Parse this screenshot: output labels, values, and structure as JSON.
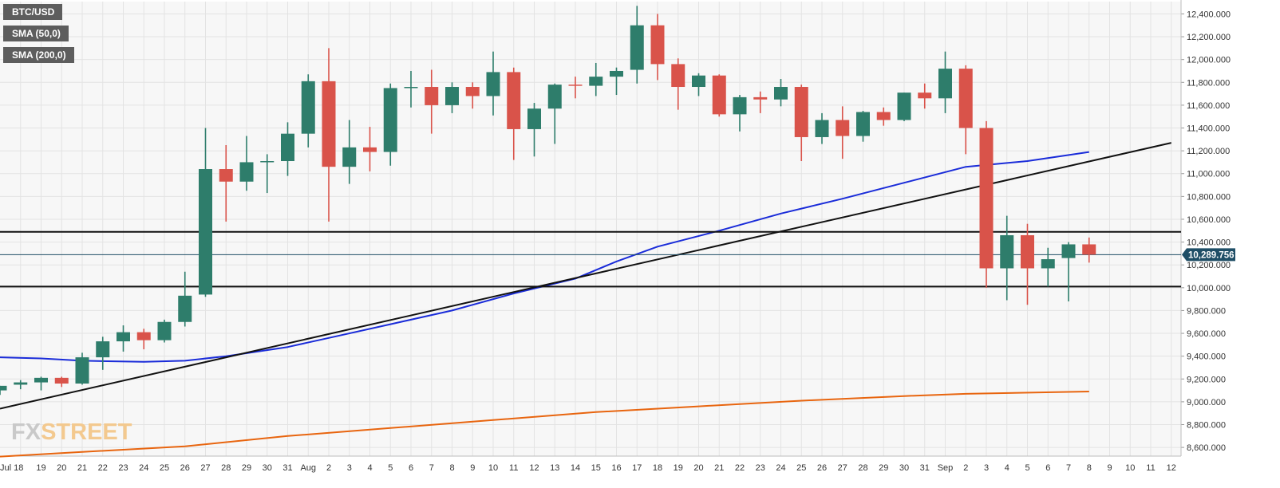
{
  "legend": [
    {
      "label": "BTC/USD",
      "color": "#5d5d5d"
    },
    {
      "label": "SMA (50,0)",
      "color": "#1a2cd9"
    },
    {
      "label": "SMA (200,0)",
      "color": "#e8650f"
    }
  ],
  "watermark": {
    "part1": "FX",
    "part2": "STREET"
  },
  "colors": {
    "bullish": "#2e7d6b",
    "bearish": "#d9534a",
    "sma50": "#1a2cd9",
    "sma200": "#e8650f",
    "trendline": "#111111",
    "level_line": "#111111",
    "current_price": "#1f4e66",
    "plot_background": "#f7f7f7",
    "grid": "#e3e3e3"
  },
  "chart_data": {
    "type": "candlestick",
    "symbol": "BTC/USD",
    "current_price": 10289.756,
    "current_price_label": "10,289.756",
    "ylim": [
      8500,
      12500
    ],
    "y_ticks": [
      8600,
      8800,
      9000,
      9200,
      9400,
      9600,
      9800,
      10000,
      10200,
      10400,
      10600,
      10800,
      11000,
      11200,
      11400,
      11600,
      11800,
      12000,
      12200,
      12400
    ],
    "y_tick_labels": [
      "8,600.000",
      "8,800.000",
      "9,000.000",
      "9,200.000",
      "9,400.000",
      "9,600.000",
      "9,800.000",
      "10,000.000",
      "10,200.000",
      "10,400.000",
      "10,600.000",
      "10,800.000",
      "11,000.000",
      "11,200.000",
      "11,400.000",
      "11,600.000",
      "11,800.000",
      "12,000.000",
      "12,200.000",
      "12,400.000"
    ],
    "x_labels": [
      "Jul 18",
      "19",
      "20",
      "21",
      "22",
      "23",
      "24",
      "25",
      "26",
      "27",
      "28",
      "29",
      "30",
      "31",
      "Aug",
      "2",
      "3",
      "4",
      "5",
      "6",
      "7",
      "8",
      "9",
      "10",
      "11",
      "12",
      "13",
      "14",
      "15",
      "16",
      "17",
      "18",
      "19",
      "20",
      "21",
      "22",
      "23",
      "24",
      "25",
      "26",
      "27",
      "28",
      "29",
      "30",
      "31",
      "Sep",
      "2",
      "3",
      "4",
      "5",
      "6",
      "7",
      "8",
      "9",
      "10",
      "11",
      "12"
    ],
    "candles": [
      {
        "date": "Jul 17",
        "open": 9100,
        "high": 9140,
        "low": 9060,
        "close": 9140
      },
      {
        "date": "Jul 18",
        "open": 9150,
        "high": 9190,
        "low": 9110,
        "close": 9170
      },
      {
        "date": "Jul 19",
        "open": 9170,
        "high": 9220,
        "low": 9100,
        "close": 9210
      },
      {
        "date": "Jul 20",
        "open": 9210,
        "high": 9220,
        "low": 9130,
        "close": 9160
      },
      {
        "date": "Jul 21",
        "open": 9160,
        "high": 9430,
        "low": 9150,
        "close": 9390
      },
      {
        "date": "Jul 22",
        "open": 9390,
        "high": 9570,
        "low": 9280,
        "close": 9530
      },
      {
        "date": "Jul 23",
        "open": 9530,
        "high": 9670,
        "low": 9440,
        "close": 9610
      },
      {
        "date": "Jul 24",
        "open": 9610,
        "high": 9640,
        "low": 9460,
        "close": 9540
      },
      {
        "date": "Jul 25",
        "open": 9540,
        "high": 9720,
        "low": 9520,
        "close": 9700
      },
      {
        "date": "Jul 26",
        "open": 9700,
        "high": 10140,
        "low": 9660,
        "close": 9930
      },
      {
        "date": "Jul 27",
        "open": 9940,
        "high": 11400,
        "low": 9920,
        "close": 11040
      },
      {
        "date": "Jul 28",
        "open": 11040,
        "high": 11250,
        "low": 10580,
        "close": 10930
      },
      {
        "date": "Jul 29",
        "open": 10930,
        "high": 11330,
        "low": 10850,
        "close": 11100
      },
      {
        "date": "Jul 30",
        "open": 11100,
        "high": 11170,
        "low": 10830,
        "close": 11110
      },
      {
        "date": "Jul 31",
        "open": 11110,
        "high": 11450,
        "low": 10980,
        "close": 11350
      },
      {
        "date": "Aug 1",
        "open": 11350,
        "high": 11870,
        "low": 11230,
        "close": 11810
      },
      {
        "date": "Aug 2",
        "open": 11810,
        "high": 12100,
        "low": 10580,
        "close": 11060
      },
      {
        "date": "Aug 3",
        "open": 11060,
        "high": 11470,
        "low": 10910,
        "close": 11230
      },
      {
        "date": "Aug 4",
        "open": 11230,
        "high": 11410,
        "low": 11020,
        "close": 11190
      },
      {
        "date": "Aug 5",
        "open": 11190,
        "high": 11790,
        "low": 11070,
        "close": 11750
      },
      {
        "date": "Aug 6",
        "open": 11750,
        "high": 11900,
        "low": 11580,
        "close": 11760
      },
      {
        "date": "Aug 7",
        "open": 11760,
        "high": 11910,
        "low": 11350,
        "close": 11600
      },
      {
        "date": "Aug 8",
        "open": 11600,
        "high": 11800,
        "low": 11530,
        "close": 11760
      },
      {
        "date": "Aug 9",
        "open": 11760,
        "high": 11800,
        "low": 11570,
        "close": 11680
      },
      {
        "date": "Aug 10",
        "open": 11680,
        "high": 12070,
        "low": 11510,
        "close": 11890
      },
      {
        "date": "Aug 11",
        "open": 11890,
        "high": 11930,
        "low": 11120,
        "close": 11390
      },
      {
        "date": "Aug 12",
        "open": 11390,
        "high": 11620,
        "low": 11150,
        "close": 11570
      },
      {
        "date": "Aug 13",
        "open": 11570,
        "high": 11790,
        "low": 11260,
        "close": 11780
      },
      {
        "date": "Aug 14",
        "open": 11780,
        "high": 11850,
        "low": 11660,
        "close": 11770
      },
      {
        "date": "Aug 15",
        "open": 11770,
        "high": 11970,
        "low": 11680,
        "close": 11850
      },
      {
        "date": "Aug 16",
        "open": 11850,
        "high": 11930,
        "low": 11690,
        "close": 11900
      },
      {
        "date": "Aug 17",
        "open": 11910,
        "high": 12470,
        "low": 11790,
        "close": 12300
      },
      {
        "date": "Aug 18",
        "open": 12300,
        "high": 12400,
        "low": 11820,
        "close": 11960
      },
      {
        "date": "Aug 19",
        "open": 11960,
        "high": 12010,
        "low": 11560,
        "close": 11760
      },
      {
        "date": "Aug 20",
        "open": 11760,
        "high": 11880,
        "low": 11680,
        "close": 11860
      },
      {
        "date": "Aug 21",
        "open": 11860,
        "high": 11870,
        "low": 11500,
        "close": 11520
      },
      {
        "date": "Aug 22",
        "open": 11520,
        "high": 11690,
        "low": 11370,
        "close": 11670
      },
      {
        "date": "Aug 23",
        "open": 11670,
        "high": 11720,
        "low": 11530,
        "close": 11650
      },
      {
        "date": "Aug 24",
        "open": 11650,
        "high": 11830,
        "low": 11590,
        "close": 11760
      },
      {
        "date": "Aug 25",
        "open": 11760,
        "high": 11780,
        "low": 11110,
        "close": 11320
      },
      {
        "date": "Aug 26",
        "open": 11320,
        "high": 11530,
        "low": 11260,
        "close": 11470
      },
      {
        "date": "Aug 27",
        "open": 11470,
        "high": 11590,
        "low": 11130,
        "close": 11330
      },
      {
        "date": "Aug 28",
        "open": 11330,
        "high": 11550,
        "low": 11280,
        "close": 11540
      },
      {
        "date": "Aug 29",
        "open": 11540,
        "high": 11580,
        "low": 11420,
        "close": 11470
      },
      {
        "date": "Aug 30",
        "open": 11470,
        "high": 11710,
        "low": 11460,
        "close": 11710
      },
      {
        "date": "Aug 31",
        "open": 11710,
        "high": 11790,
        "low": 11570,
        "close": 11660
      },
      {
        "date": "Sep 1",
        "open": 11660,
        "high": 12070,
        "low": 11530,
        "close": 11920
      },
      {
        "date": "Sep 2",
        "open": 11920,
        "high": 11950,
        "low": 11170,
        "close": 11400
      },
      {
        "date": "Sep 3",
        "open": 11400,
        "high": 11460,
        "low": 10000,
        "close": 10170
      },
      {
        "date": "Sep 4",
        "open": 10170,
        "high": 10630,
        "low": 9890,
        "close": 10460
      },
      {
        "date": "Sep 5",
        "open": 10460,
        "high": 10560,
        "low": 9850,
        "close": 10170
      },
      {
        "date": "Sep 6",
        "open": 10170,
        "high": 10350,
        "low": 10010,
        "close": 10250
      },
      {
        "date": "Sep 7",
        "open": 10260,
        "high": 10400,
        "low": 9880,
        "close": 10380
      },
      {
        "date": "Sep 8",
        "open": 10380,
        "high": 10440,
        "low": 10220,
        "close": 10290
      }
    ],
    "horizontal_levels": [
      10490,
      10010
    ],
    "trendline": {
      "points": [
        [
          "Jul 17",
          8940
        ],
        [
          "Sep 12",
          11270
        ]
      ]
    },
    "series": [
      {
        "name": "SMA (50,0)",
        "color": "#1a2cd9",
        "points": [
          [
            "Jul 17",
            9390
          ],
          [
            "Jul 19",
            9380
          ],
          [
            "Jul 21",
            9360
          ],
          [
            "Jul 24",
            9350
          ],
          [
            "Jul 26",
            9360
          ],
          [
            "Jul 28",
            9400
          ],
          [
            "Jul 31",
            9480
          ],
          [
            "Aug 2",
            9560
          ],
          [
            "Aug 5",
            9680
          ],
          [
            "Aug 8",
            9800
          ],
          [
            "Aug 11",
            9950
          ],
          [
            "Aug 14",
            10080
          ],
          [
            "Aug 16",
            10230
          ],
          [
            "Aug 18",
            10360
          ],
          [
            "Aug 21",
            10500
          ],
          [
            "Aug 24",
            10650
          ],
          [
            "Aug 27",
            10780
          ],
          [
            "Aug 30",
            10920
          ],
          [
            "Sep 2",
            11060
          ],
          [
            "Sep 5",
            11110
          ],
          [
            "Sep 8",
            11190
          ]
        ]
      },
      {
        "name": "SMA (200,0)",
        "color": "#e8650f",
        "points": [
          [
            "Jul 17",
            8520
          ],
          [
            "Jul 21",
            8560
          ],
          [
            "Jul 26",
            8610
          ],
          [
            "Jul 31",
            8700
          ],
          [
            "Aug 5",
            8770
          ],
          [
            "Aug 10",
            8840
          ],
          [
            "Aug 15",
            8910
          ],
          [
            "Aug 20",
            8960
          ],
          [
            "Aug 25",
            9010
          ],
          [
            "Aug 30",
            9050
          ],
          [
            "Sep 2",
            9070
          ],
          [
            "Sep 8",
            9090
          ]
        ]
      }
    ]
  }
}
